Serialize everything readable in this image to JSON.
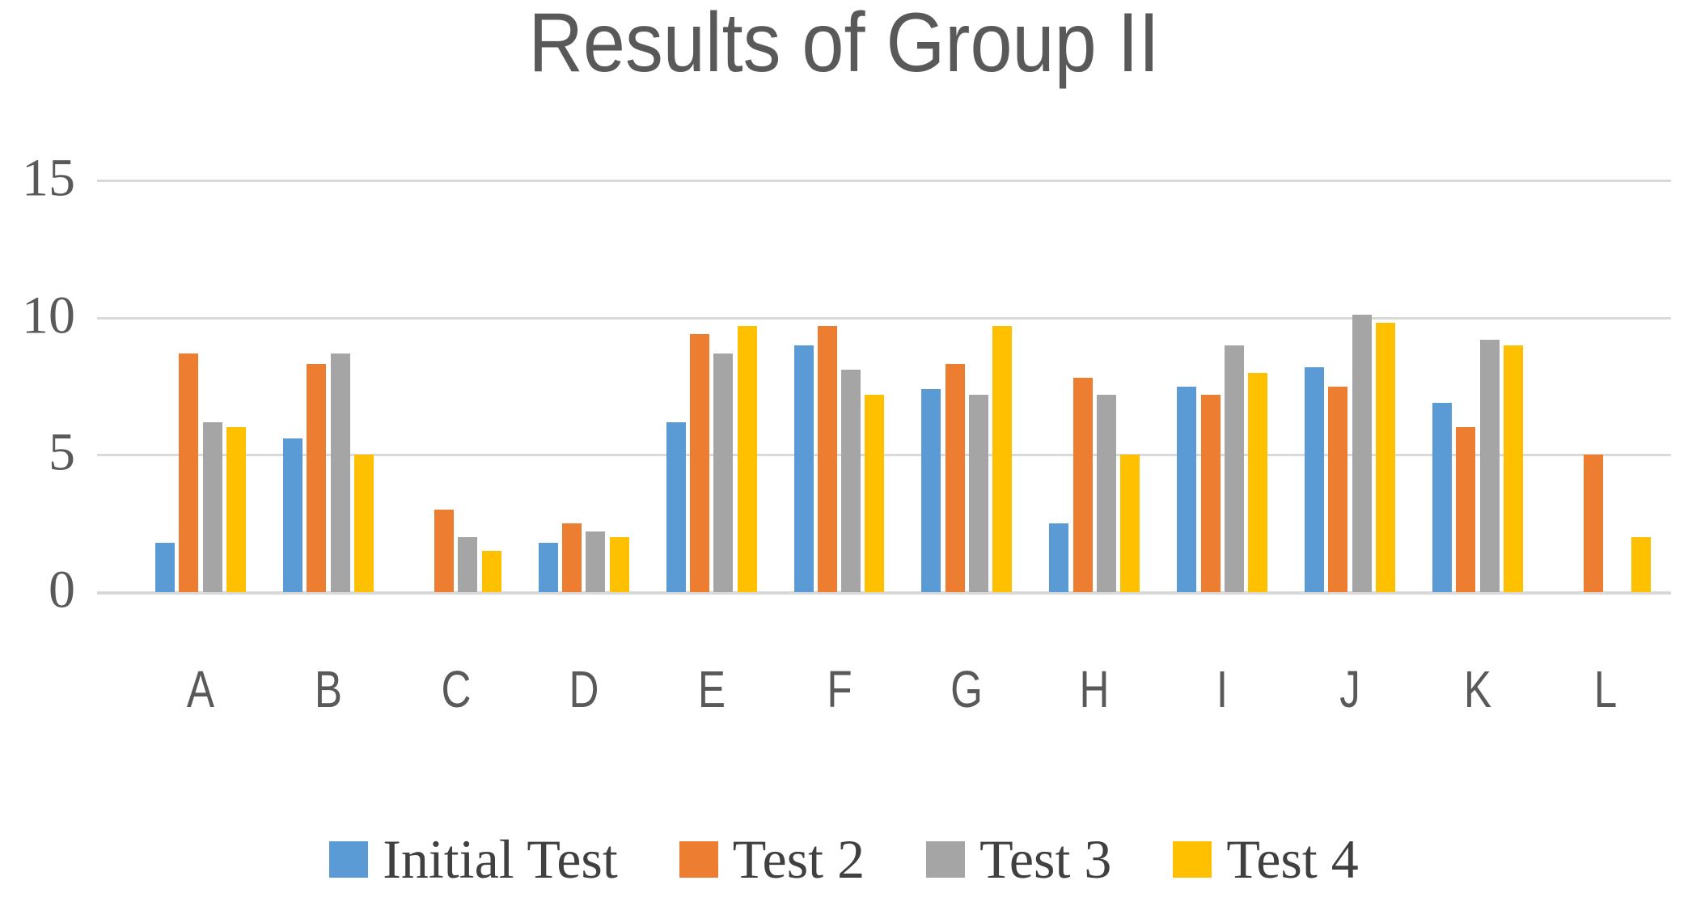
{
  "chart_data": {
    "type": "bar",
    "title": "Results of Group II",
    "categories": [
      "A",
      "B",
      "C",
      "D",
      "E",
      "F",
      "G",
      "H",
      "I",
      "J",
      "K",
      "L"
    ],
    "series": [
      {
        "name": "Initial Test",
        "color": "#5B9BD5",
        "values": [
          1.8,
          5.6,
          0,
          1.8,
          6.2,
          9.0,
          7.4,
          2.5,
          7.5,
          8.2,
          6.9,
          0
        ]
      },
      {
        "name": "Test 2",
        "color": "#ED7D31",
        "values": [
          8.7,
          8.3,
          3.0,
          2.5,
          9.4,
          9.7,
          8.3,
          7.8,
          7.2,
          7.5,
          6.0,
          5.0
        ]
      },
      {
        "name": "Test 3",
        "color": "#A5A5A5",
        "values": [
          6.2,
          8.7,
          2.0,
          2.2,
          8.7,
          8.1,
          7.2,
          7.2,
          9.0,
          10.1,
          9.2,
          0
        ]
      },
      {
        "name": "Test 4",
        "color": "#FFC000",
        "values": [
          6.0,
          5.0,
          1.5,
          2.0,
          9.7,
          7.2,
          9.7,
          5.0,
          8.0,
          9.8,
          9.0,
          2.0
        ]
      }
    ],
    "ylim": [
      0,
      15
    ],
    "yticks": [
      0,
      5,
      10,
      15
    ],
    "ytick_labels": [
      "0",
      "5",
      "10",
      "15"
    ],
    "xlabel": "",
    "ylabel": "",
    "grid": true,
    "legend_position": "bottom",
    "colors": {
      "gridline": "#D9D9D9",
      "axis_text": "#595959",
      "title_text": "#595959",
      "legend_text": "#404040",
      "background": "#FFFFFF"
    }
  }
}
